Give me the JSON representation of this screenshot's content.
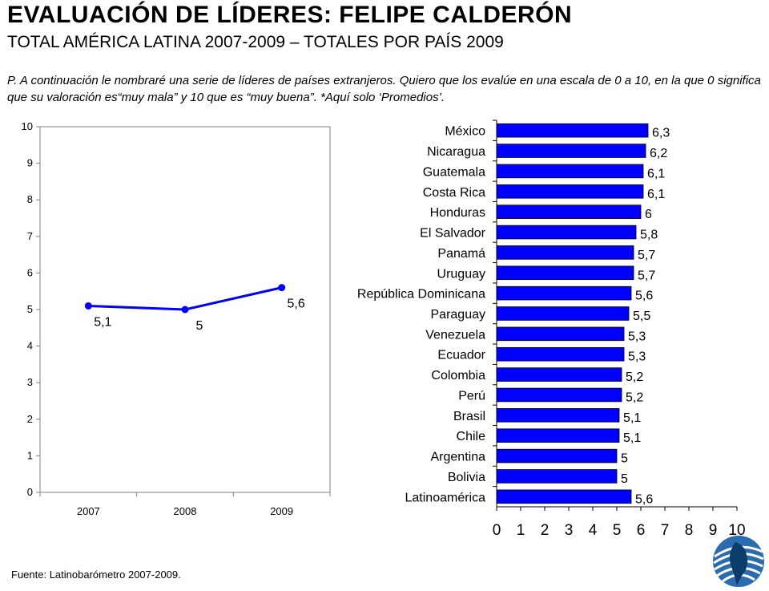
{
  "header": {
    "title": "EVALUACIÓN DE LÍDERES:  FELIPE CALDERÓN",
    "subtitle": "TOTAL AMÉRICA LATINA 2007-2009 – TOTALES POR PAÍS 2009",
    "question": "P. A continuación le nombraré una serie de líderes de países extranjeros. Quiero que los evalúe en una escala de 0 a 10, en la que 0 significa que su valoración es“muy mala” y 10 que es “muy buena”. *Aquí solo ‘Promedios’."
  },
  "footer": {
    "source": "Fuente: Latinobarómetro 2007-2009."
  },
  "colors": {
    "series": "#0000ff",
    "axis": "#808080",
    "plot_bg": "#ffffff"
  },
  "logo": {
    "icon": "latinobarometro-globe-logo"
  },
  "chart_data": [
    {
      "type": "line",
      "x": [
        "2007",
        "2008",
        "2009"
      ],
      "series": [
        {
          "values": [
            5.1,
            5.0,
            5.6
          ],
          "labels": [
            "5,1",
            "5",
            "5,6"
          ]
        }
      ],
      "ylim": [
        0,
        10
      ],
      "yticks": [
        0,
        1,
        2,
        3,
        4,
        5,
        6,
        7,
        8,
        9,
        10
      ],
      "grid": false
    },
    {
      "type": "bar",
      "orientation": "horizontal",
      "categories": [
        "México",
        "Nicaragua",
        "Guatemala",
        "Costa Rica",
        "Honduras",
        "El Salvador",
        "Panamá",
        "Uruguay",
        "República Dominicana",
        "Paraguay",
        "Venezuela",
        "Ecuador",
        "Colombia",
        "Perú",
        "Brasil",
        "Chile",
        "Argentina",
        "Bolivia",
        "Latinoamérica"
      ],
      "values": [
        6.3,
        6.2,
        6.1,
        6.1,
        6.0,
        5.8,
        5.7,
        5.7,
        5.6,
        5.5,
        5.3,
        5.3,
        5.2,
        5.2,
        5.1,
        5.1,
        5.0,
        5.0,
        5.6
      ],
      "labels": [
        "6,3",
        "6,2",
        "6,1",
        "6,1",
        "6",
        "5,8",
        "5,7",
        "5,7",
        "5,6",
        "5,5",
        "5,3",
        "5,3",
        "5,2",
        "5,2",
        "5,1",
        "5,1",
        "5",
        "5",
        "5,6"
      ],
      "xlim": [
        0,
        10
      ],
      "xticks": [
        0,
        1,
        2,
        3,
        4,
        5,
        6,
        7,
        8,
        9,
        10
      ],
      "grid": false
    }
  ]
}
